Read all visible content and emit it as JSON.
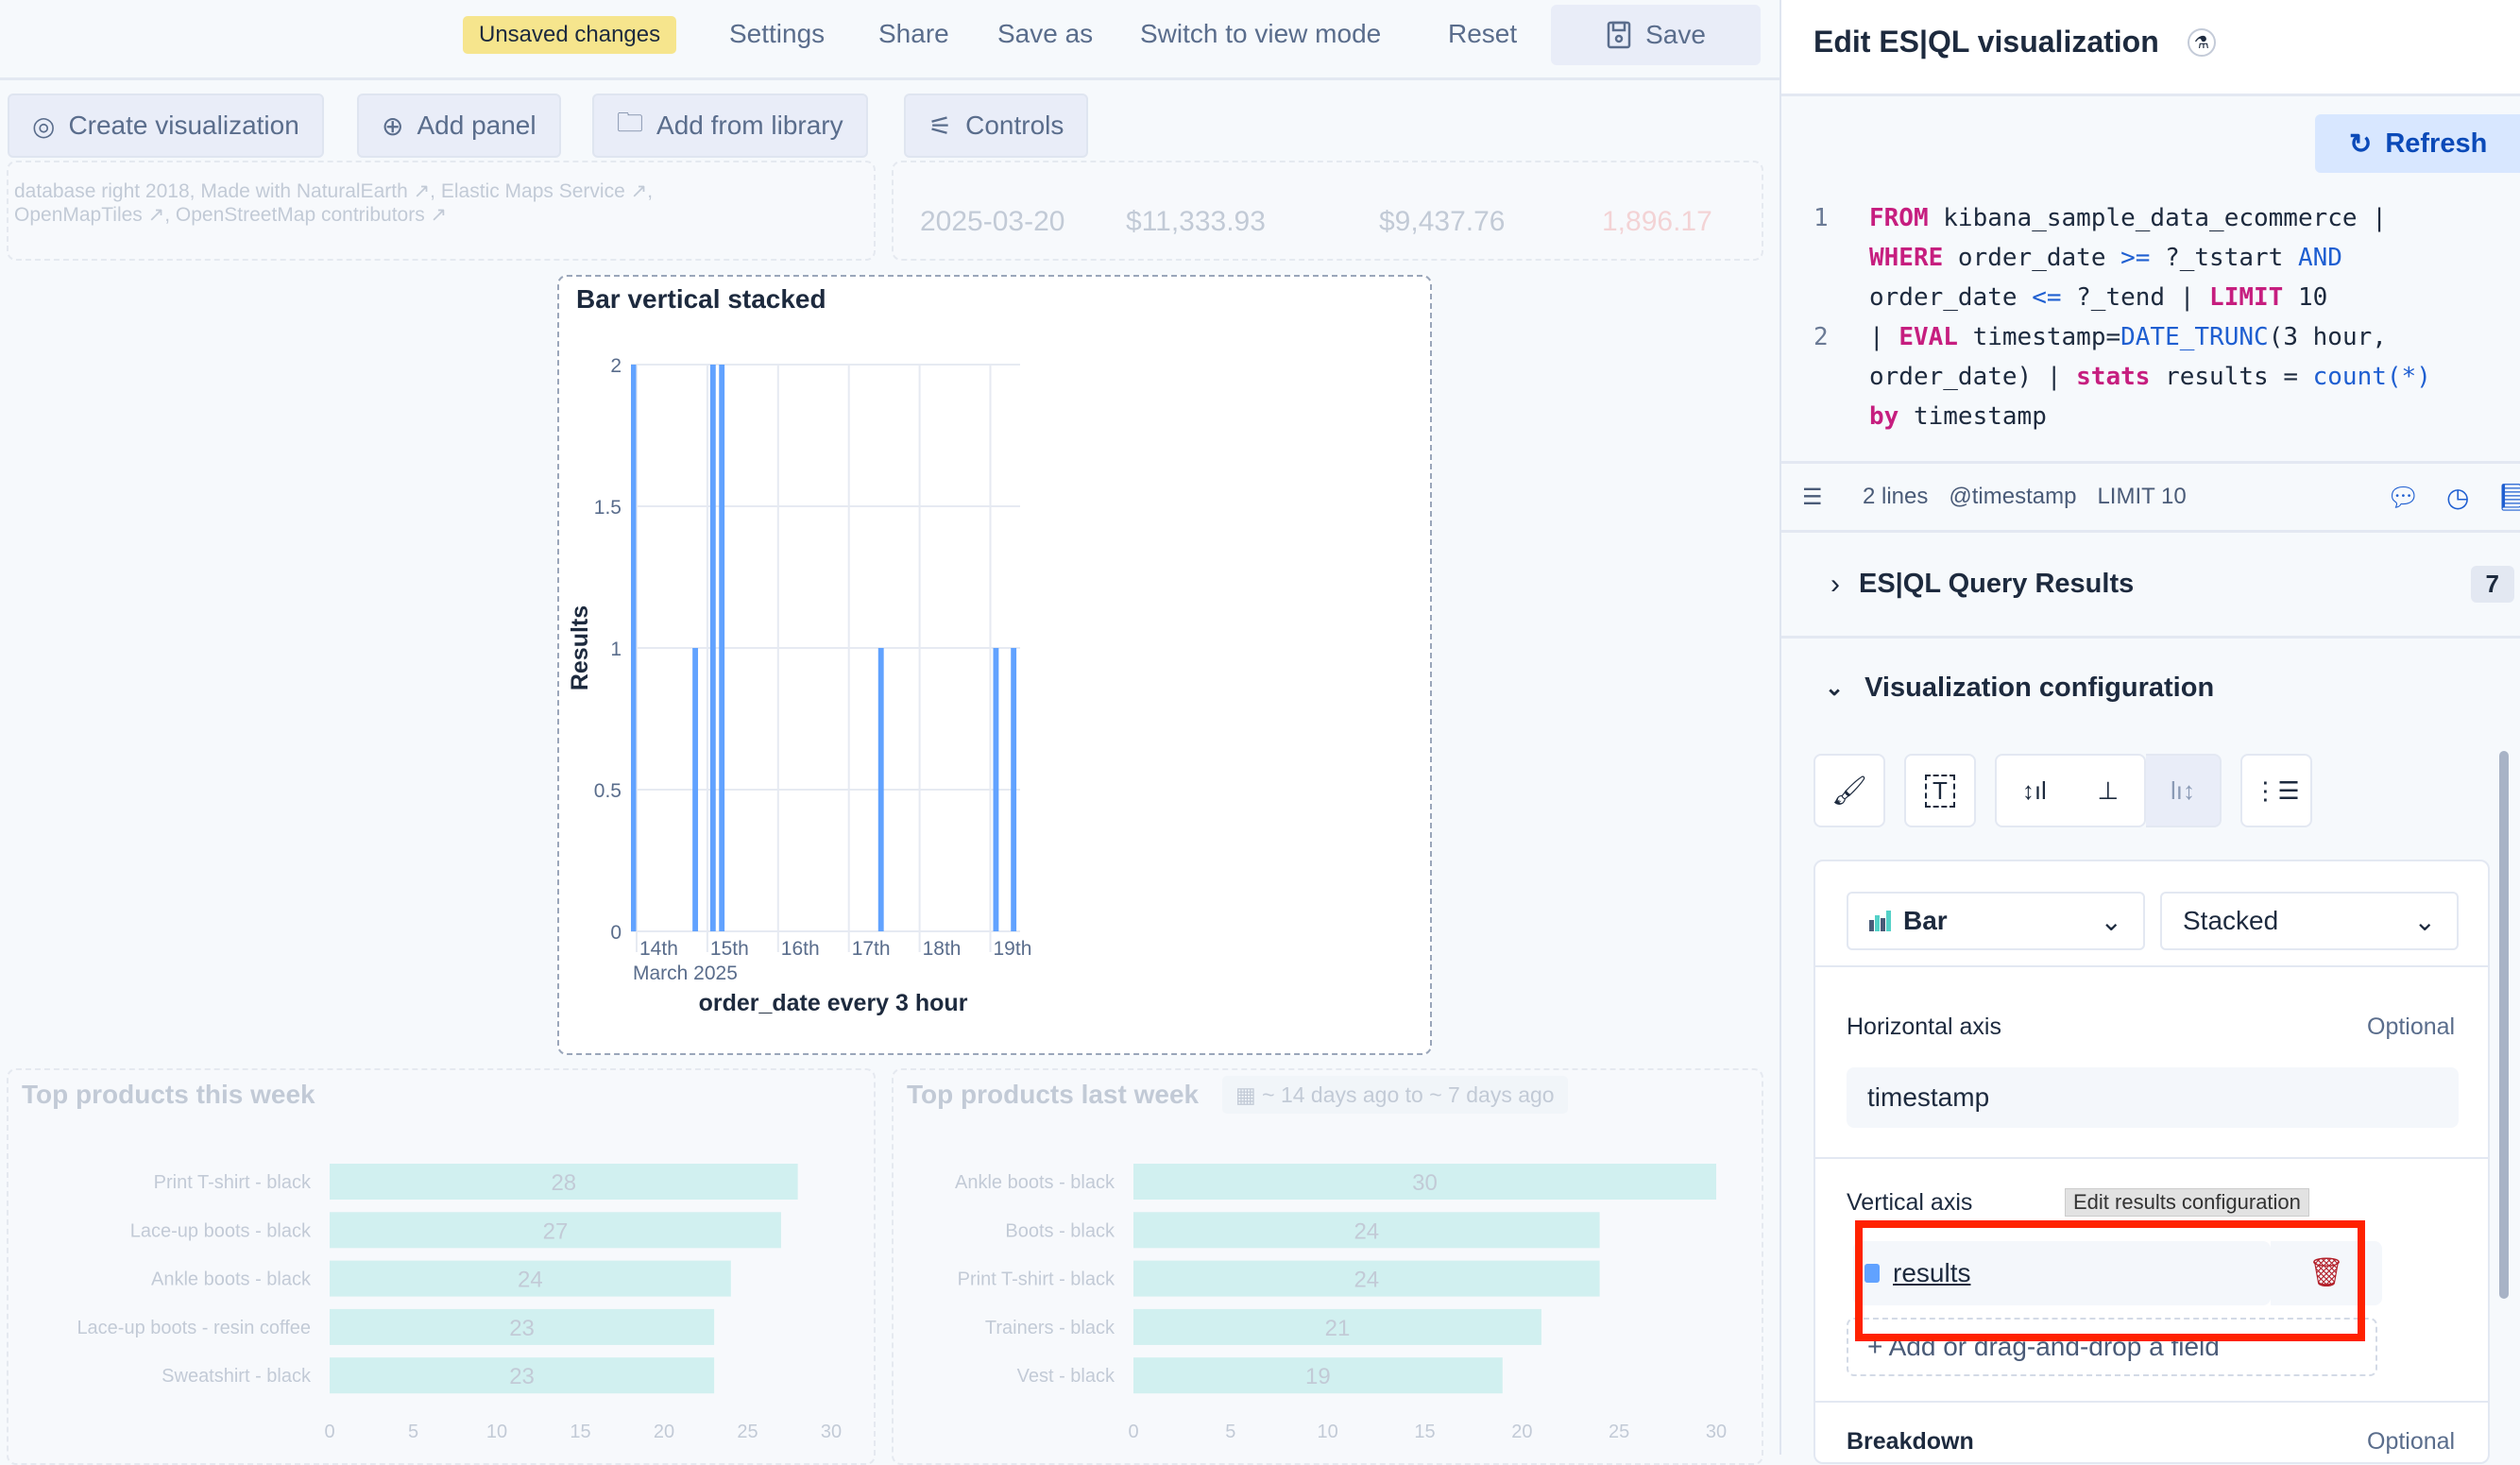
{
  "topbar": {
    "unsaved": "Unsaved changes",
    "settings": "Settings",
    "share": "Share",
    "save_as": "Save as",
    "switch_view": "Switch to view mode",
    "reset": "Reset",
    "save": "Save"
  },
  "toolbar": {
    "create_visualization": "Create visualization",
    "add_panel": "Add panel",
    "add_from_library": "Add from library",
    "controls": "Controls"
  },
  "map_panel": {
    "attribution_line1": [
      "database right 2018, Made with NaturalEarth",
      "Elastic Maps Service"
    ],
    "attribution_line2": [
      "OpenMapTiles",
      "OpenStreetMap contributors"
    ]
  },
  "table_panel": {
    "row": [
      "2025-03-20",
      "$11,333.93",
      "$9,437.76",
      "1,896.17"
    ]
  },
  "chart_panel": {
    "title": "Bar vertical stacked"
  },
  "chart_data": [
    {
      "type": "bar",
      "title": "Bar vertical stacked",
      "xlabel": "order_date every 3 hour",
      "ylabel": "Results",
      "ylim": [
        0,
        2
      ],
      "yticks": [
        "0",
        "0.5",
        "1",
        "1.5",
        "2"
      ],
      "xticks": [
        "14th",
        "15th",
        "16th",
        "17th",
        "18th",
        "19th"
      ],
      "xtick_sublabel": "March 2025",
      "grid": true,
      "color": "#61a2ff",
      "x": [
        "2025-03-13 21:00",
        "2025-03-14 18:00",
        "2025-03-15 00:00",
        "2025-03-15 03:00",
        "2025-03-17 09:00",
        "2025-03-19 00:00",
        "2025-03-19 06:00"
      ],
      "values": [
        2,
        1,
        2,
        2,
        1,
        1,
        1
      ]
    },
    {
      "type": "bar",
      "orientation": "horizontal",
      "title": "Top products this week",
      "categories": [
        "Print T-shirt - black",
        "Lace-up boots - black",
        "Ankle boots - black",
        "Lace-up boots - resin coffee",
        "Sweatshirt - black"
      ],
      "values": [
        28,
        27,
        24,
        23,
        23
      ],
      "xlim": [
        0,
        30
      ],
      "xticks": [
        "0",
        "5",
        "10",
        "15",
        "20",
        "25",
        "30"
      ],
      "color": "#54d1c8"
    },
    {
      "type": "bar",
      "orientation": "horizontal",
      "title": "Top products last week",
      "badge": "~ 14 days ago to ~ 7 days ago",
      "categories": [
        "Ankle boots - black",
        "Boots - black",
        "Print T-shirt - black",
        "Trainers - black",
        "Vest - black"
      ],
      "values": [
        30,
        24,
        24,
        21,
        19
      ],
      "xlim": [
        0,
        30
      ],
      "xticks": [
        "0",
        "5",
        "10",
        "15",
        "20",
        "25",
        "30"
      ],
      "color": "#54d1c8"
    }
  ],
  "editor": {
    "title": "Edit ES|QL visualization",
    "refresh": "Refresh",
    "code_lines": [
      {
        "num": "1",
        "rows": [
          [
            [
              "kw",
              "FROM"
            ],
            [
              "tx",
              " kibana_sample_data_ecommerce |"
            ]
          ],
          [
            [
              "kw",
              "WHERE"
            ],
            [
              "tx",
              " order_date "
            ],
            [
              "op",
              ">="
            ],
            [
              "tx",
              " ?_tstart "
            ],
            [
              "op",
              "AND"
            ]
          ],
          [
            [
              "tx",
              "order_date "
            ],
            [
              "op",
              "<="
            ],
            [
              "tx",
              " ?_tend | "
            ],
            [
              "kw",
              "LIMIT"
            ],
            [
              "tx",
              " 10"
            ]
          ]
        ]
      },
      {
        "num": "2",
        "rows": [
          [
            [
              "tx",
              "| "
            ],
            [
              "kw",
              "EVAL"
            ],
            [
              "tx",
              " timestamp="
            ],
            [
              "op",
              "DATE_TRUNC"
            ],
            [
              "tx",
              "(3 hour,"
            ]
          ],
          [
            [
              "tx",
              "order_date) | "
            ],
            [
              "kw",
              "stats"
            ],
            [
              "tx",
              " results = "
            ],
            [
              "op",
              "count(*)"
            ]
          ],
          [
            [
              "kw",
              "by"
            ],
            [
              "tx",
              " timestamp"
            ]
          ]
        ]
      }
    ],
    "footer": {
      "lines": "2 lines",
      "timestamp": "@timestamp",
      "limit": "LIMIT 10"
    },
    "results_section": {
      "label": "ES|QL Query Results",
      "count": "7"
    },
    "config_section": {
      "label": "Visualization configuration"
    },
    "chart_type": "Bar",
    "mode": "Stacked",
    "horizontal_axis": {
      "label": "Horizontal axis",
      "optional": "Optional",
      "value": "timestamp"
    },
    "vertical_axis": {
      "label": "Vertical axis",
      "field": "results",
      "color": "#61a2ff",
      "add_field": "Add or drag-and-drop a field",
      "tooltip": "Edit results configuration"
    },
    "breakdown": {
      "label": "Breakdown",
      "optional": "Optional"
    },
    "highlight_color": "#ff2200"
  }
}
